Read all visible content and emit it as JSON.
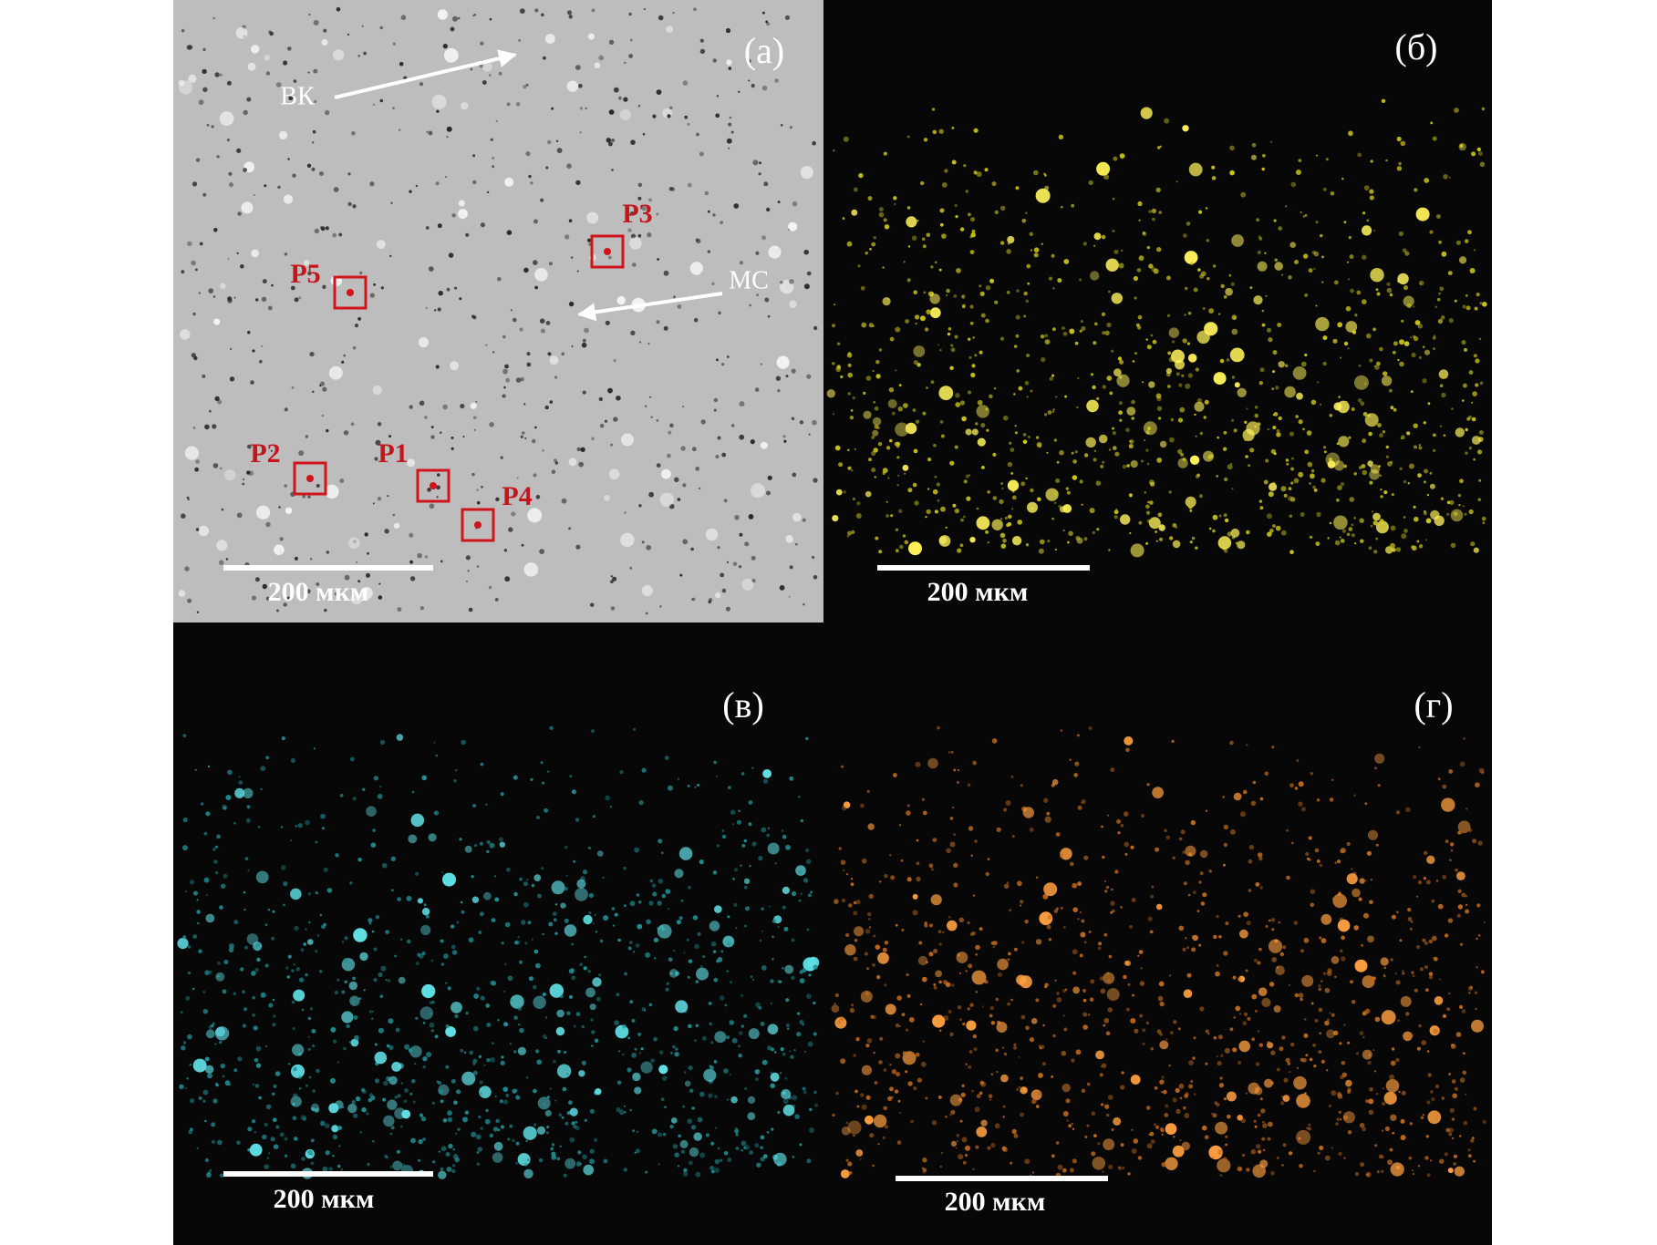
{
  "panels": [
    {
      "label": "(а)",
      "scale_bar": "200 мкм",
      "annotations": [
        "ВК",
        "МС"
      ],
      "points": [
        "P1",
        "P2",
        "P3",
        "P4",
        "P5"
      ]
    },
    {
      "label": "(б)",
      "scale_bar": "200 мкм"
    },
    {
      "label": "(в)",
      "scale_bar": "200 мкм"
    },
    {
      "label": "(г)",
      "scale_bar": "200 мкм"
    }
  ]
}
